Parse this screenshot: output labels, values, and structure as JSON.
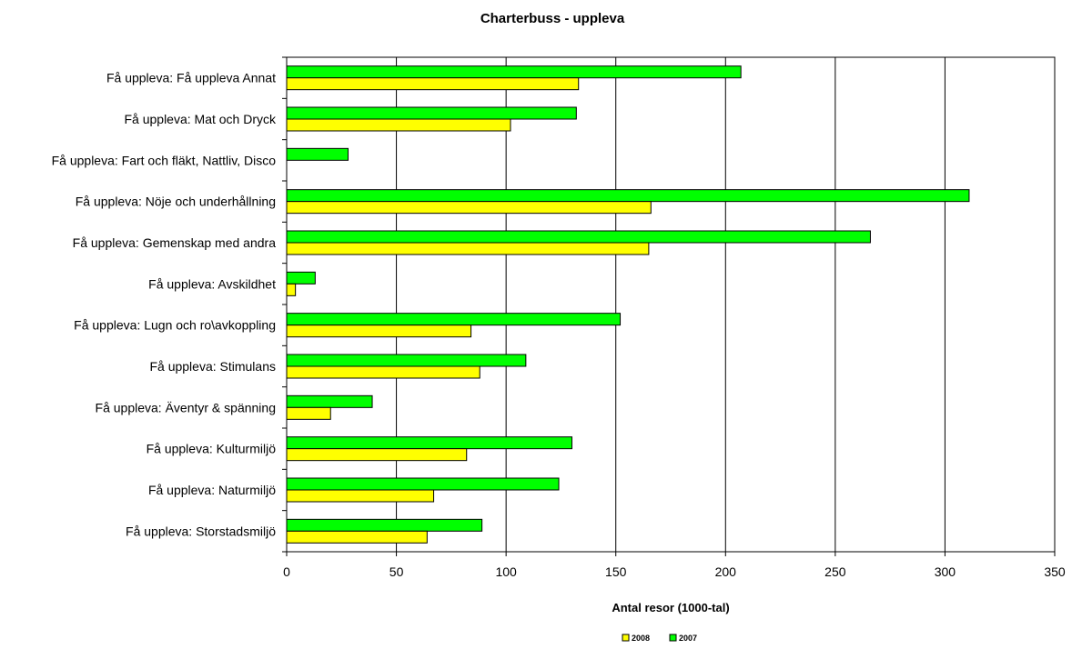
{
  "chart_data": {
    "type": "bar",
    "orientation": "horizontal",
    "title": "Charterbuss - uppleva",
    "xlabel": "Antal resor (1000-tal)",
    "ylabel": "",
    "xlim": [
      0,
      350
    ],
    "xticks": [
      0,
      50,
      100,
      150,
      200,
      250,
      300,
      350
    ],
    "grid": true,
    "legend_position": "bottom",
    "categories": [
      "Få uppleva: Få uppleva Annat",
      "Få uppleva: Mat och Dryck",
      "Få uppleva: Fart och fläkt, Nattliv, Disco",
      "Få uppleva: Nöje och underhållning",
      "Få uppleva: Gemenskap med andra",
      "Få uppleva: Avskildhet",
      "Få uppleva: Lugn och ro\\avkoppling",
      "Få uppleva: Stimulans",
      "Få uppleva: Äventyr & spänning",
      "Få uppleva: Kulturmiljö",
      "Få uppleva: Naturmiljö",
      "Få uppleva: Storstadsmiljö"
    ],
    "series": [
      {
        "name": "2007",
        "color": "#00ff00",
        "values": [
          207,
          132,
          28,
          311,
          266,
          13,
          152,
          109,
          39,
          130,
          124,
          89
        ]
      },
      {
        "name": "2008",
        "color": "#ffff00",
        "values": [
          133,
          102,
          0,
          166,
          165,
          4,
          84,
          88,
          20,
          82,
          67,
          64
        ]
      }
    ],
    "legend_order": [
      "2008",
      "2007"
    ]
  }
}
